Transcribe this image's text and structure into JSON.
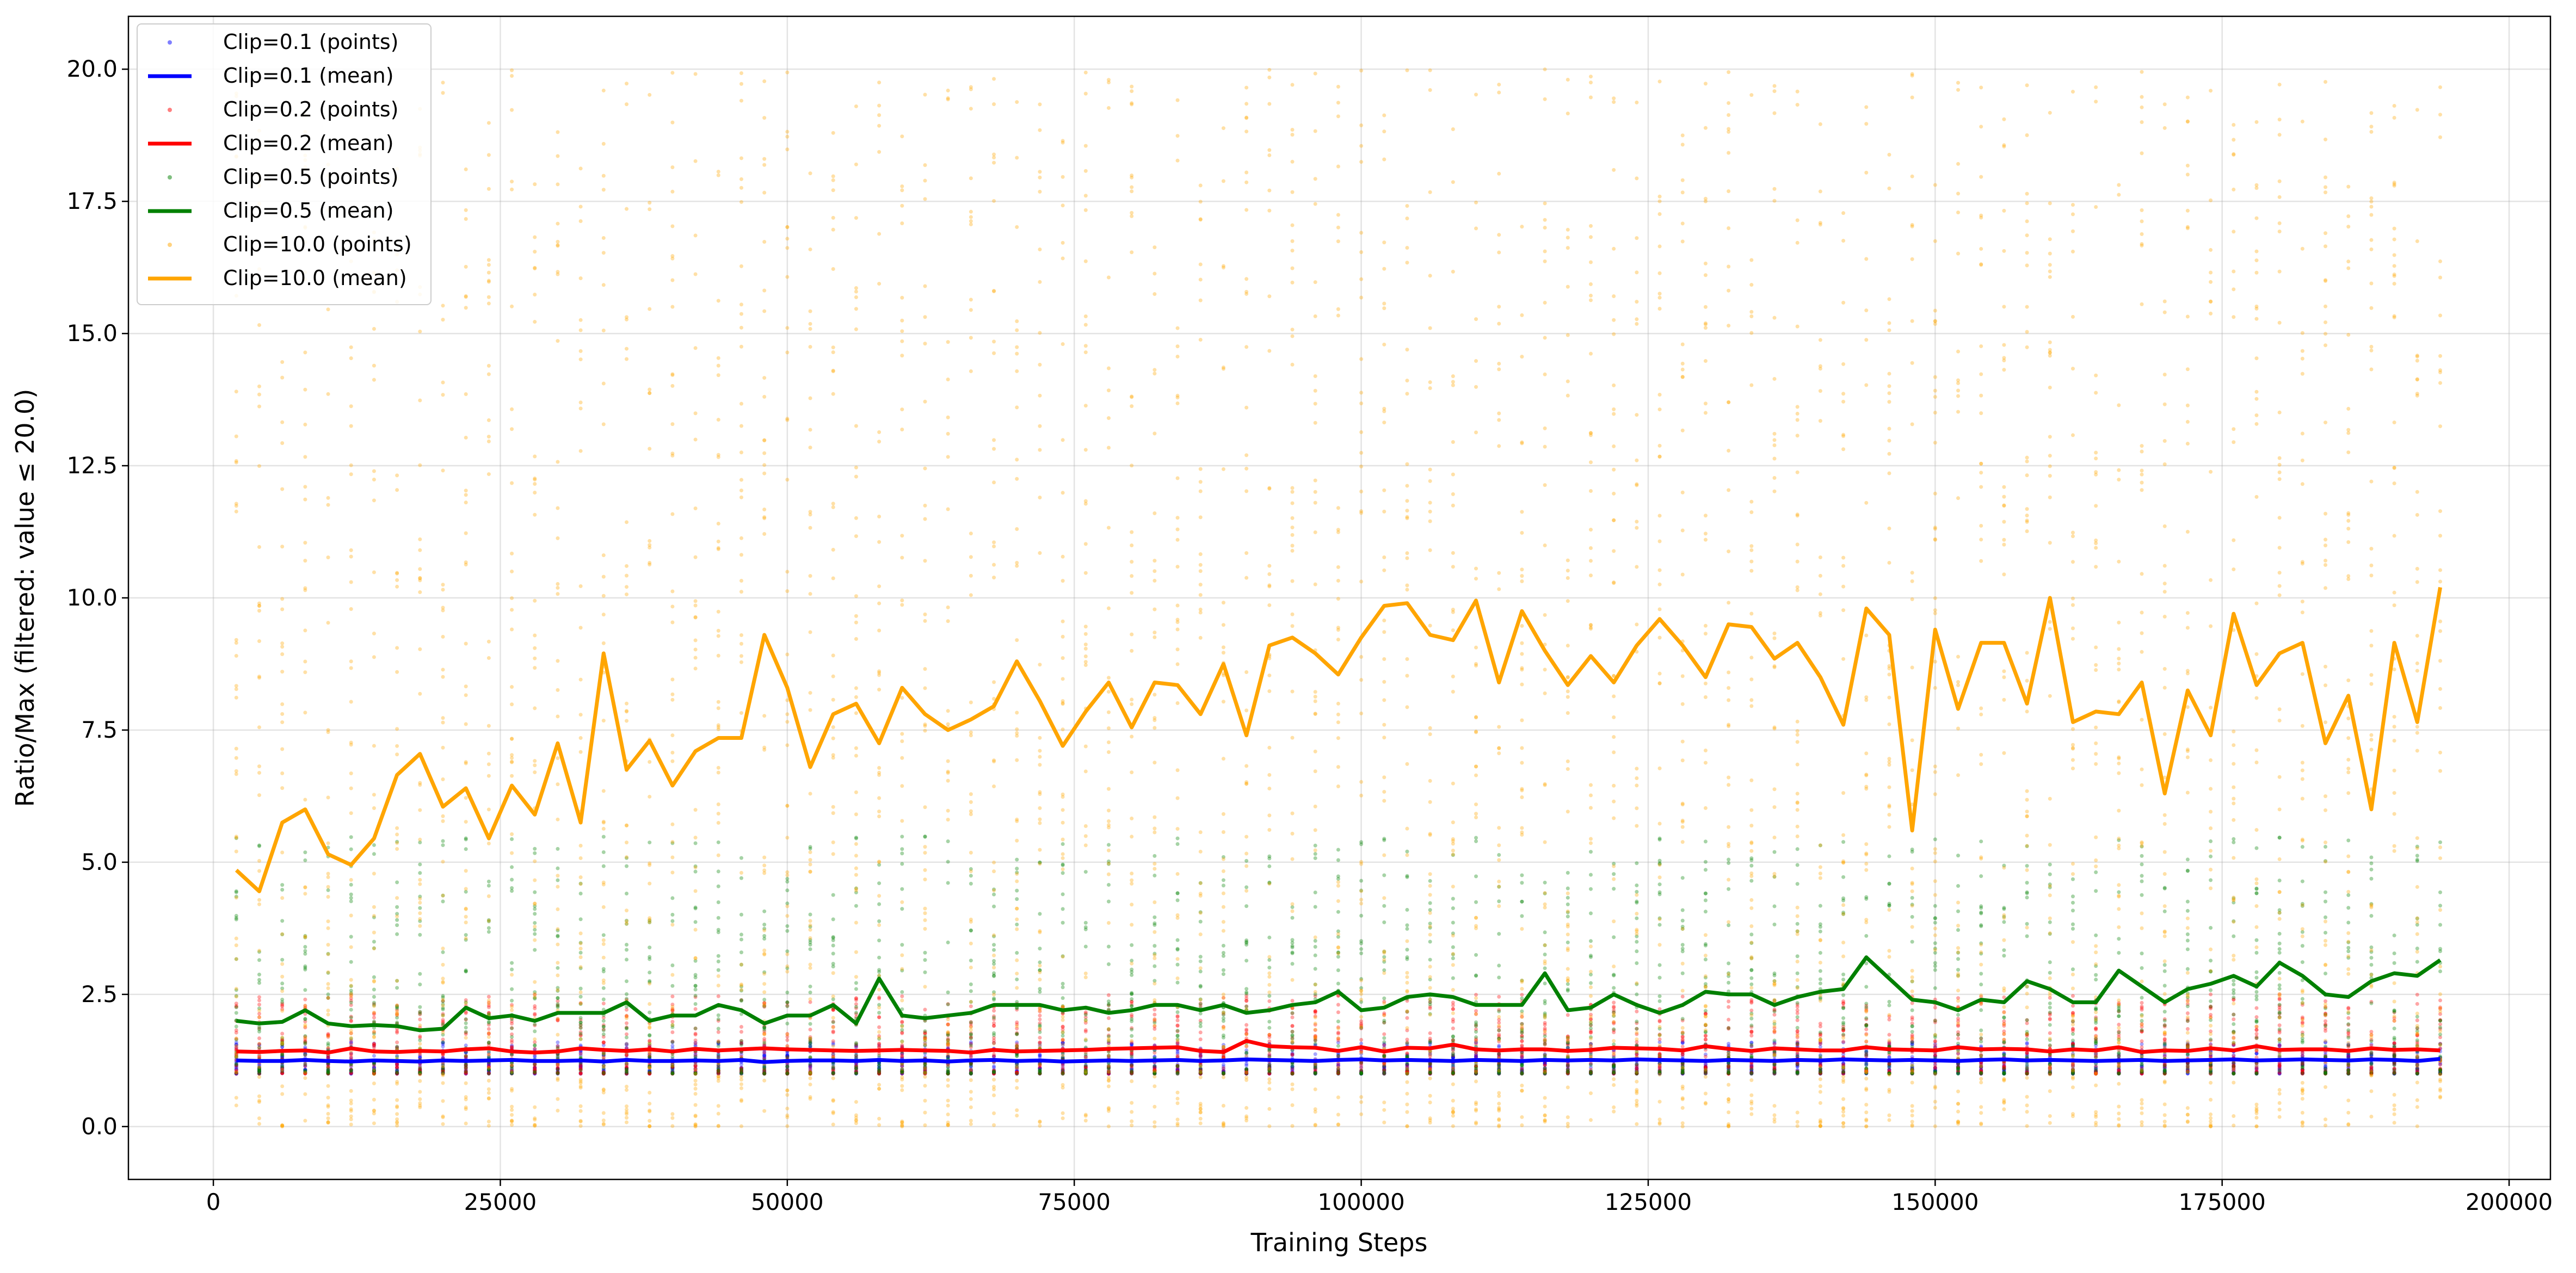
{
  "chart_data": {
    "type": "line",
    "title": "",
    "xlabel": "Training Steps",
    "ylabel": "Ratio/Max (filtered: value ≤ 20.0)",
    "xlim": [
      -7400,
      203600
    ],
    "ylim": [
      -1.0,
      21.0
    ],
    "xticks": [
      0,
      25000,
      50000,
      75000,
      100000,
      125000,
      150000,
      175000,
      200000
    ],
    "xtick_labels": [
      "0",
      "25000",
      "50000",
      "75000",
      "100000",
      "125000",
      "150000",
      "175000",
      "200000"
    ],
    "yticks": [
      0,
      2.5,
      5,
      7.5,
      10,
      12.5,
      15,
      17.5,
      20
    ],
    "ytick_labels": [
      "0.0",
      "2.5",
      "5.0",
      "7.5",
      "10.0",
      "12.5",
      "15.0",
      "17.5",
      "20.0"
    ],
    "grid": true,
    "legend_position": "top-left",
    "x": {
      "start": 2000,
      "step": 2000,
      "count": 97
    },
    "series": [
      {
        "name": "Clip=0.1 (mean)",
        "points_label": "Clip=0.1 (points)",
        "color": "#0000ff",
        "points_spread": [
          1.0,
          1.6
        ],
        "values": [
          1.25,
          1.24,
          1.24,
          1.26,
          1.24,
          1.23,
          1.25,
          1.24,
          1.23,
          1.25,
          1.24,
          1.25,
          1.26,
          1.24,
          1.24,
          1.25,
          1.23,
          1.26,
          1.24,
          1.24,
          1.25,
          1.24,
          1.26,
          1.22,
          1.24,
          1.25,
          1.25,
          1.24,
          1.26,
          1.24,
          1.25,
          1.23,
          1.25,
          1.26,
          1.24,
          1.25,
          1.23,
          1.24,
          1.25,
          1.24,
          1.25,
          1.26,
          1.24,
          1.25,
          1.27,
          1.26,
          1.25,
          1.24,
          1.26,
          1.27,
          1.25,
          1.26,
          1.25,
          1.24,
          1.26,
          1.25,
          1.24,
          1.26,
          1.25,
          1.26,
          1.25,
          1.27,
          1.26,
          1.25,
          1.24,
          1.26,
          1.25,
          1.24,
          1.26,
          1.25,
          1.27,
          1.26,
          1.25,
          1.26,
          1.25,
          1.24,
          1.26,
          1.27,
          1.25,
          1.26,
          1.25,
          1.24,
          1.25,
          1.26,
          1.24,
          1.25,
          1.26,
          1.27,
          1.25,
          1.26,
          1.27,
          1.26,
          1.25,
          1.27,
          1.26,
          1.24,
          1.28
        ]
      },
      {
        "name": "Clip=0.2 (mean)",
        "points_label": "Clip=0.2 (points)",
        "color": "#ff0000",
        "points_spread": [
          1.0,
          2.5
        ],
        "values": [
          1.42,
          1.41,
          1.43,
          1.44,
          1.4,
          1.48,
          1.42,
          1.41,
          1.43,
          1.42,
          1.46,
          1.48,
          1.42,
          1.4,
          1.42,
          1.48,
          1.45,
          1.43,
          1.46,
          1.42,
          1.47,
          1.44,
          1.46,
          1.48,
          1.46,
          1.45,
          1.44,
          1.43,
          1.44,
          1.45,
          1.44,
          1.43,
          1.4,
          1.45,
          1.42,
          1.43,
          1.44,
          1.45,
          1.47,
          1.48,
          1.49,
          1.5,
          1.43,
          1.41,
          1.62,
          1.52,
          1.5,
          1.49,
          1.43,
          1.5,
          1.42,
          1.49,
          1.48,
          1.55,
          1.46,
          1.44,
          1.46,
          1.46,
          1.43,
          1.45,
          1.49,
          1.48,
          1.47,
          1.44,
          1.52,
          1.47,
          1.43,
          1.48,
          1.46,
          1.44,
          1.44,
          1.5,
          1.46,
          1.45,
          1.44,
          1.5,
          1.46,
          1.47,
          1.46,
          1.42,
          1.46,
          1.44,
          1.5,
          1.41,
          1.44,
          1.43,
          1.48,
          1.44,
          1.52,
          1.45,
          1.46,
          1.46,
          1.43,
          1.48,
          1.45,
          1.46,
          1.44
        ]
      },
      {
        "name": "Clip=0.5 (mean)",
        "points_label": "Clip=0.5 (points)",
        "color": "#008000",
        "points_spread": [
          1.0,
          5.5
        ],
        "values": [
          2.0,
          1.95,
          1.98,
          2.2,
          1.95,
          1.9,
          1.92,
          1.9,
          1.82,
          1.85,
          2.25,
          2.05,
          2.1,
          2.0,
          2.15,
          2.15,
          2.15,
          2.35,
          2.0,
          2.1,
          2.1,
          2.3,
          2.2,
          1.95,
          2.1,
          2.1,
          2.3,
          1.95,
          2.8,
          2.1,
          2.05,
          2.1,
          2.15,
          2.3,
          2.3,
          2.3,
          2.2,
          2.25,
          2.15,
          2.2,
          2.3,
          2.3,
          2.2,
          2.3,
          2.15,
          2.2,
          2.3,
          2.35,
          2.55,
          2.2,
          2.25,
          2.45,
          2.5,
          2.45,
          2.3,
          2.3,
          2.3,
          2.9,
          2.2,
          2.25,
          2.5,
          2.3,
          2.15,
          2.3,
          2.55,
          2.5,
          2.5,
          2.3,
          2.45,
          2.55,
          2.6,
          3.2,
          2.8,
          2.4,
          2.35,
          2.2,
          2.4,
          2.35,
          2.75,
          2.6,
          2.35,
          2.35,
          2.95,
          2.65,
          2.35,
          2.6,
          2.7,
          2.85,
          2.65,
          3.1,
          2.85,
          2.5,
          2.45,
          2.75,
          2.9,
          2.85,
          3.15
        ]
      },
      {
        "name": "Clip=10.0 (mean)",
        "points_label": "Clip=10.0 (points)",
        "color": "#ffa500",
        "points_spread": [
          0.0,
          20.0
        ],
        "values": [
          4.85,
          4.45,
          5.75,
          6.0,
          5.15,
          4.95,
          5.45,
          6.65,
          7.05,
          6.05,
          6.4,
          5.45,
          6.45,
          5.9,
          7.25,
          5.75,
          8.95,
          6.75,
          7.3,
          6.45,
          7.1,
          7.35,
          7.35,
          9.3,
          8.3,
          6.8,
          7.8,
          8.0,
          7.25,
          8.3,
          7.8,
          7.5,
          7.7,
          7.95,
          8.8,
          8.05,
          7.2,
          7.85,
          8.4,
          7.55,
          8.4,
          8.35,
          7.8,
          8.75,
          7.4,
          9.1,
          9.25,
          8.95,
          8.55,
          9.25,
          9.85,
          9.9,
          9.3,
          9.2,
          9.95,
          8.4,
          9.75,
          9.0,
          8.35,
          8.9,
          8.4,
          9.1,
          9.6,
          9.1,
          8.5,
          9.5,
          9.45,
          8.85,
          9.15,
          8.5,
          7.6,
          9.8,
          9.3,
          5.6,
          9.4,
          7.9,
          9.15,
          9.15,
          8.0,
          10.0,
          7.65,
          7.85,
          7.8,
          8.4,
          6.3,
          8.25,
          7.4,
          9.7,
          8.35,
          8.95,
          9.15,
          7.25,
          8.15,
          6.0,
          9.15,
          7.65,
          10.2
        ]
      }
    ]
  }
}
